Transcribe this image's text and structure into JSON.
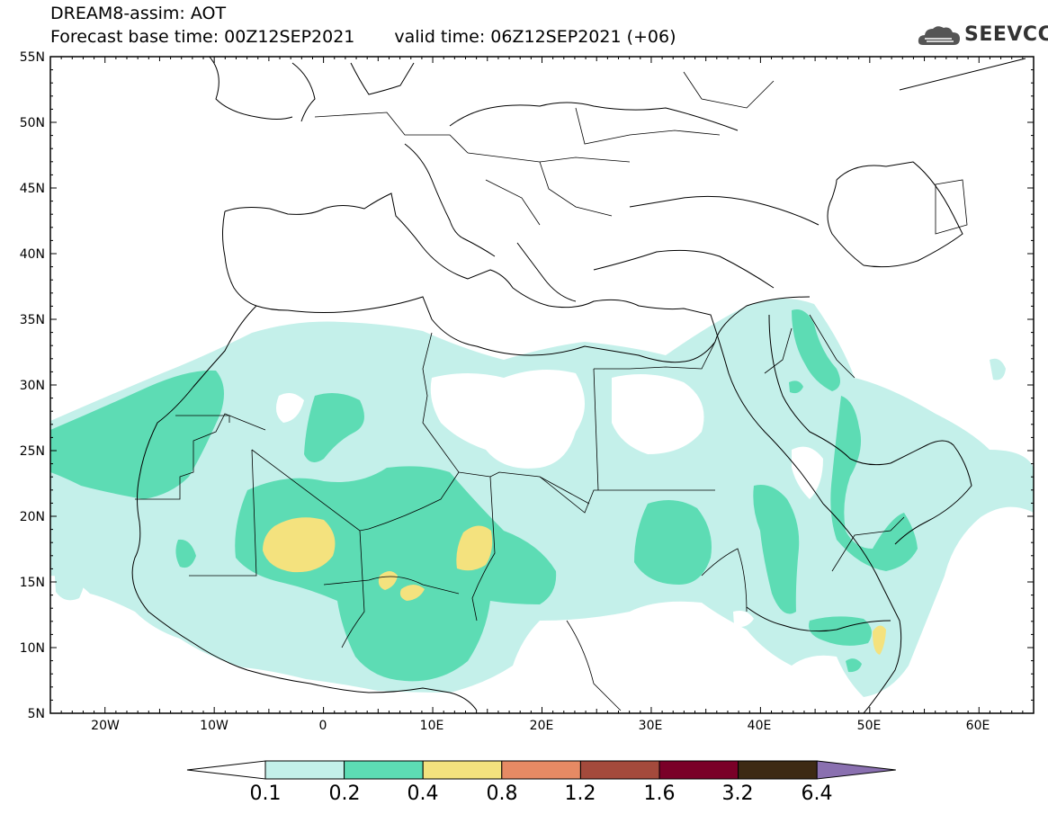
{
  "header": {
    "title_line1": "DREAM8-assim: AOT",
    "base_time": "Forecast base time: 00Z12SEP2021",
    "valid_time": "valid time: 06Z12SEP2021 (+06)"
  },
  "logo": {
    "text": "SEEVCCC",
    "icon": "cloud-logo-icon"
  },
  "map": {
    "lon_range": [
      -25,
      65
    ],
    "lat_range": [
      5,
      55
    ],
    "lat_ticks": [
      "55N",
      "50N",
      "45N",
      "40N",
      "35N",
      "30N",
      "25N",
      "20N",
      "15N",
      "10N",
      "5N"
    ],
    "lon_ticks": [
      "20W",
      "10W",
      "0",
      "10E",
      "20E",
      "30E",
      "40E",
      "50E",
      "60E"
    ]
  },
  "colorbar": {
    "colors": [
      "#c4f0ea",
      "#5ddcb4",
      "#f4e27e",
      "#e68a64",
      "#a44a3c",
      "#7a0028",
      "#3d2a14",
      "#8a70b0"
    ],
    "labels": [
      "0.1",
      "0.2",
      "0.4",
      "0.8",
      "1.2",
      "1.6",
      "3.2",
      "6.4"
    ]
  }
}
